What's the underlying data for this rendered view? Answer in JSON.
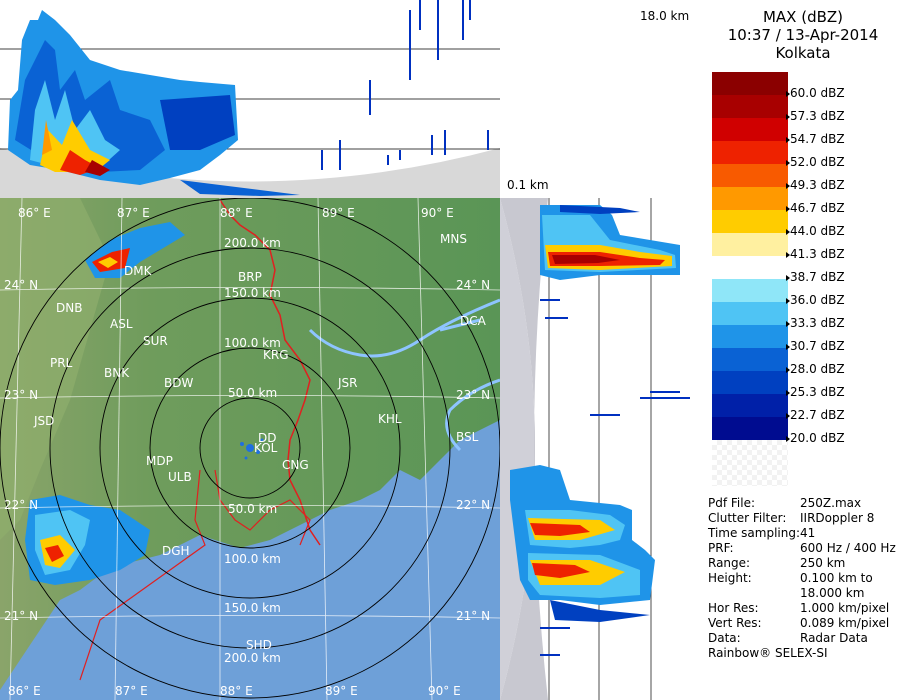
{
  "title": {
    "product": "MAX (dBZ)",
    "datetime": "10:37 / 13-Apr-2014",
    "station": "Kolkata"
  },
  "height_labels": {
    "top": "18.0 km",
    "bottom": "0.1 km"
  },
  "legend": {
    "entries": [
      {
        "label": "60.0 dBZ",
        "color": "#8b0000"
      },
      {
        "label": "57.3 dBZ",
        "color": "#a80000"
      },
      {
        "label": "54.7 dBZ",
        "color": "#d00000"
      },
      {
        "label": "52.0 dBZ",
        "color": "#ee2200"
      },
      {
        "label": "49.3 dBZ",
        "color": "#f85a00"
      },
      {
        "label": "46.7 dBZ",
        "color": "#ff9900"
      },
      {
        "label": "44.0 dBZ",
        "color": "#ffcc00"
      },
      {
        "label": "41.3 dBZ",
        "color": "#fff0a0"
      },
      {
        "label": "38.7 dBZ",
        "color": "#ffffff"
      },
      {
        "label": "36.0 dBZ",
        "color": "#8fe6f8"
      },
      {
        "label": "33.3 dBZ",
        "color": "#4fc4f4"
      },
      {
        "label": "30.7 dBZ",
        "color": "#1f94e8"
      },
      {
        "label": "28.0 dBZ",
        "color": "#0a62d4"
      },
      {
        "label": "25.3 dBZ",
        "color": "#0040c0"
      },
      {
        "label": "22.7 dBZ",
        "color": "#0020a8"
      },
      {
        "label": "20.0 dBZ",
        "color": "#000c90"
      }
    ]
  },
  "info": [
    {
      "key": "Pdf File:",
      "value": "250Z.max"
    },
    {
      "key": "Clutter Filter:",
      "value": "IIRDoppler 8"
    },
    {
      "key": "Time sampling:",
      "value": "41"
    },
    {
      "key": "PRF:",
      "value": "600 Hz / 400 Hz"
    },
    {
      "key": "Range:",
      "value": "250 km"
    },
    {
      "key": "Height:",
      "value": "0.100 km to"
    },
    {
      "key": "",
      "value": "18.000 km"
    },
    {
      "key": "Hor Res:",
      "value": "1.000 km/pixel"
    },
    {
      "key": "Vert Res:",
      "value": "0.089 km/pixel"
    },
    {
      "key": "Data:",
      "value": "Radar Data"
    }
  ],
  "footer": "Rainbow® SELEX-SI",
  "map": {
    "longitude_labels_top": [
      "86° E",
      "87° E",
      "88° E",
      "89° E",
      "90° E"
    ],
    "longitude_labels_bottom": [
      "86° E",
      "87° E",
      "88° E",
      "89° E",
      "90° E"
    ],
    "latitude_labels_left": [
      "24° N",
      "23° N",
      "22° N",
      "21° N"
    ],
    "latitude_labels_right": [
      "24° N",
      "23° N",
      "22° N",
      "21° N"
    ],
    "range_labels_north": [
      "200.0 km",
      "150.0 km",
      "100.0 km",
      "50.0 km"
    ],
    "range_labels_south": [
      "50.0 km",
      "100.0 km",
      "150.0 km",
      "200.0 km"
    ],
    "places": [
      "MNS",
      "DMK",
      "BRP",
      "DNB",
      "ASL",
      "SUR",
      "DCA",
      "KRG",
      "PRL",
      "BNK",
      "BDW",
      "JSR",
      "KHL",
      "JSD",
      "DD",
      "KOL",
      "BSL",
      "MDP",
      "ULB",
      "CNG",
      "DGH",
      "SHD"
    ],
    "colors": {
      "land": "#5f9a5a",
      "sea": "#6ea0d8",
      "border": "#e02020",
      "grid": "#000000"
    }
  }
}
